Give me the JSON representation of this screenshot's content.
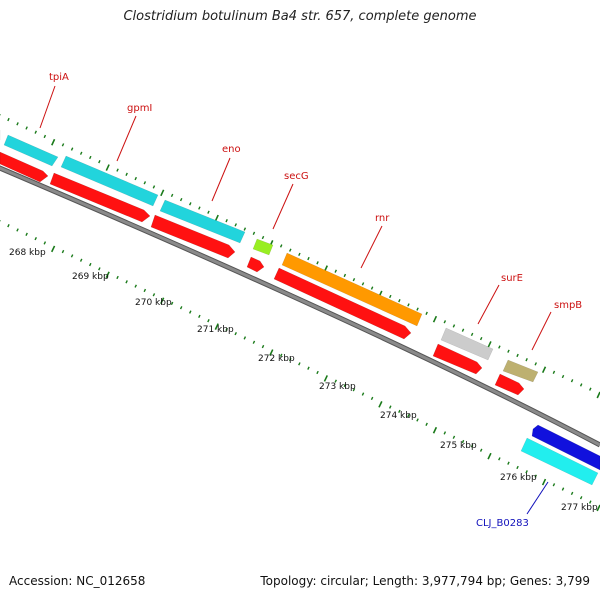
{
  "title": "Clostridium botulinum Ba4 str. 657, complete genome",
  "footer": {
    "accession": "Accession: NC_012658",
    "summary": "Topology: circular; Length: 3,977,794 bp; Genes: 3,799"
  },
  "colors": {
    "backbone": "#8a8a8a",
    "ticks": "#1a7a1a",
    "feature_label_red": "#cc1111",
    "feature_label_blue": "#1111bb"
  },
  "ticks": [
    "268 kbp",
    "269 kbp",
    "270 kbp",
    "271 kbp",
    "272 kbp",
    "273 kbp",
    "274 kbp",
    "275 kbp",
    "276 kbp",
    "277 kbp"
  ],
  "genes": [
    {
      "name": "tpiA",
      "color": "#ff1111",
      "strand": "+",
      "label_color": "#cc1111"
    },
    {
      "name": "gpmI",
      "color": "#ff1111",
      "strand": "+",
      "label_color": "#cc1111"
    },
    {
      "name": "eno",
      "color": "#ff1111",
      "strand": "+",
      "label_color": "#cc1111"
    },
    {
      "name": "secG",
      "color": "#ff1111",
      "strand": "+",
      "label_color": "#cc1111"
    },
    {
      "name": "rnr",
      "color": "#ff1111",
      "strand": "+",
      "label_color": "#cc1111"
    },
    {
      "name": "surE",
      "color": "#ff1111",
      "strand": "+",
      "label_color": "#cc1111"
    },
    {
      "name": "smpB",
      "color": "#ff1111",
      "strand": "+",
      "label_color": "#cc1111"
    },
    {
      "name": "CLJ_B0283",
      "color": "#1111dd",
      "strand": "-",
      "label_color": "#1111bb"
    }
  ],
  "cog_boxes": [
    {
      "color": "#22d4dc"
    },
    {
      "color": "#22d4dc"
    },
    {
      "color": "#22d4dc"
    },
    {
      "color": "#99ee22"
    },
    {
      "color": "#ff9900"
    },
    {
      "color": "#cccccc"
    },
    {
      "color": "#bdb070"
    },
    {
      "color": "#22eeee"
    }
  ]
}
